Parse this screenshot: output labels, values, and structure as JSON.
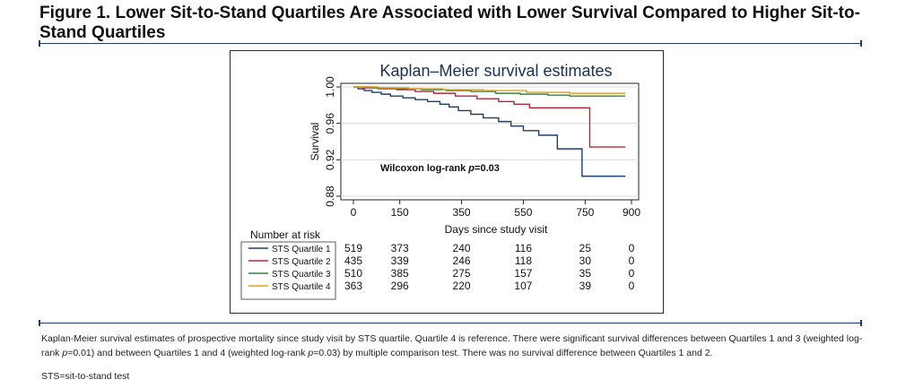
{
  "figure": {
    "title": "Figure 1. Lower Sit-to-Stand Quartiles Are Associated with Lower Survival Compared to Higher Sit-to-Stand Quartiles",
    "caption_a": "Kaplan-Meier survival estimates of prospective mortality since study visit by STS quartile. Quartile 4 is reference. There were significant survival differences between Quartiles 1 and 3 (weighted log-rank ",
    "caption_p1": "p",
    "caption_b": "=0.01) and between Quartiles 1 and 4 (weighted log-rank ",
    "caption_p2": "p",
    "caption_c": "=0.03) by multiple comparison test. There was no survival difference between Quartiles 1 and 2.",
    "footnote": "STS=sit-to-stand test",
    "rule_color": "#1e3a6e"
  },
  "chart_data": {
    "type": "line",
    "title": "Kaplan–Meier survival estimates",
    "xlabel": "Days since study visit",
    "ylabel": "Survival",
    "xlim": [
      0,
      900
    ],
    "ylim": [
      0.88,
      1.0
    ],
    "xticks": [
      0,
      150,
      350,
      550,
      750,
      900
    ],
    "yticks": [
      "0.88",
      "0.92",
      "0.96",
      "1.00"
    ],
    "grid": true,
    "annotation": {
      "text_prefix": "Wilcoxon log-rank ",
      "text_p": "p",
      "text_suffix": "=0.03"
    },
    "risk_table": {
      "title": "Number at risk",
      "times": [
        0,
        150,
        350,
        550,
        750,
        900
      ],
      "rows": [
        {
          "name": "STS Quartile 1",
          "counts": [
            "519",
            "373",
            "240",
            "116",
            "25",
            "0"
          ]
        },
        {
          "name": "STS Quartile 2",
          "counts": [
            "435",
            "339",
            "246",
            "118",
            "30",
            "0"
          ]
        },
        {
          "name": "STS Quartile 3",
          "counts": [
            "510",
            "385",
            "275",
            "157",
            "35",
            "0"
          ]
        },
        {
          "name": "STS Quartile 4",
          "counts": [
            "363",
            "296",
            "220",
            "107",
            "39",
            "0"
          ]
        }
      ]
    },
    "series": [
      {
        "name": "STS Quartile 1",
        "color": "#1f3d6e",
        "points": [
          [
            0,
            1.0
          ],
          [
            15,
            0.998
          ],
          [
            35,
            0.996
          ],
          [
            60,
            0.994
          ],
          [
            90,
            0.992
          ],
          [
            120,
            0.99
          ],
          [
            160,
            0.988
          ],
          [
            200,
            0.986
          ],
          [
            240,
            0.984
          ],
          [
            280,
            0.981
          ],
          [
            310,
            0.978
          ],
          [
            340,
            0.974
          ],
          [
            380,
            0.97
          ],
          [
            420,
            0.966
          ],
          [
            470,
            0.962
          ],
          [
            510,
            0.957
          ],
          [
            550,
            0.952
          ],
          [
            600,
            0.947
          ],
          [
            660,
            0.932
          ],
          [
            740,
            0.902
          ],
          [
            880,
            0.902
          ]
        ]
      },
      {
        "name": "STS Quartile 2",
        "color": "#b02a3a",
        "points": [
          [
            0,
            1.0
          ],
          [
            30,
            0.999
          ],
          [
            80,
            0.998
          ],
          [
            140,
            0.997
          ],
          [
            200,
            0.995
          ],
          [
            260,
            0.993
          ],
          [
            330,
            0.99
          ],
          [
            400,
            0.987
          ],
          [
            470,
            0.984
          ],
          [
            520,
            0.981
          ],
          [
            570,
            0.977
          ],
          [
            765,
            0.934
          ],
          [
            880,
            0.934
          ]
        ]
      },
      {
        "name": "STS Quartile 3",
        "color": "#3f7f3f",
        "points": [
          [
            0,
            1.0
          ],
          [
            60,
            0.999
          ],
          [
            140,
            0.998
          ],
          [
            220,
            0.997
          ],
          [
            300,
            0.996
          ],
          [
            380,
            0.995
          ],
          [
            460,
            0.993
          ],
          [
            540,
            0.992
          ],
          [
            630,
            0.991
          ],
          [
            700,
            0.99
          ],
          [
            880,
            0.99
          ]
        ]
      },
      {
        "name": "STS Quartile 4",
        "color": "#e0a020",
        "points": [
          [
            0,
            1.0
          ],
          [
            80,
            0.999
          ],
          [
            180,
            0.998
          ],
          [
            290,
            0.997
          ],
          [
            420,
            0.996
          ],
          [
            560,
            0.994
          ],
          [
            700,
            0.993
          ],
          [
            880,
            0.993
          ]
        ]
      }
    ]
  }
}
